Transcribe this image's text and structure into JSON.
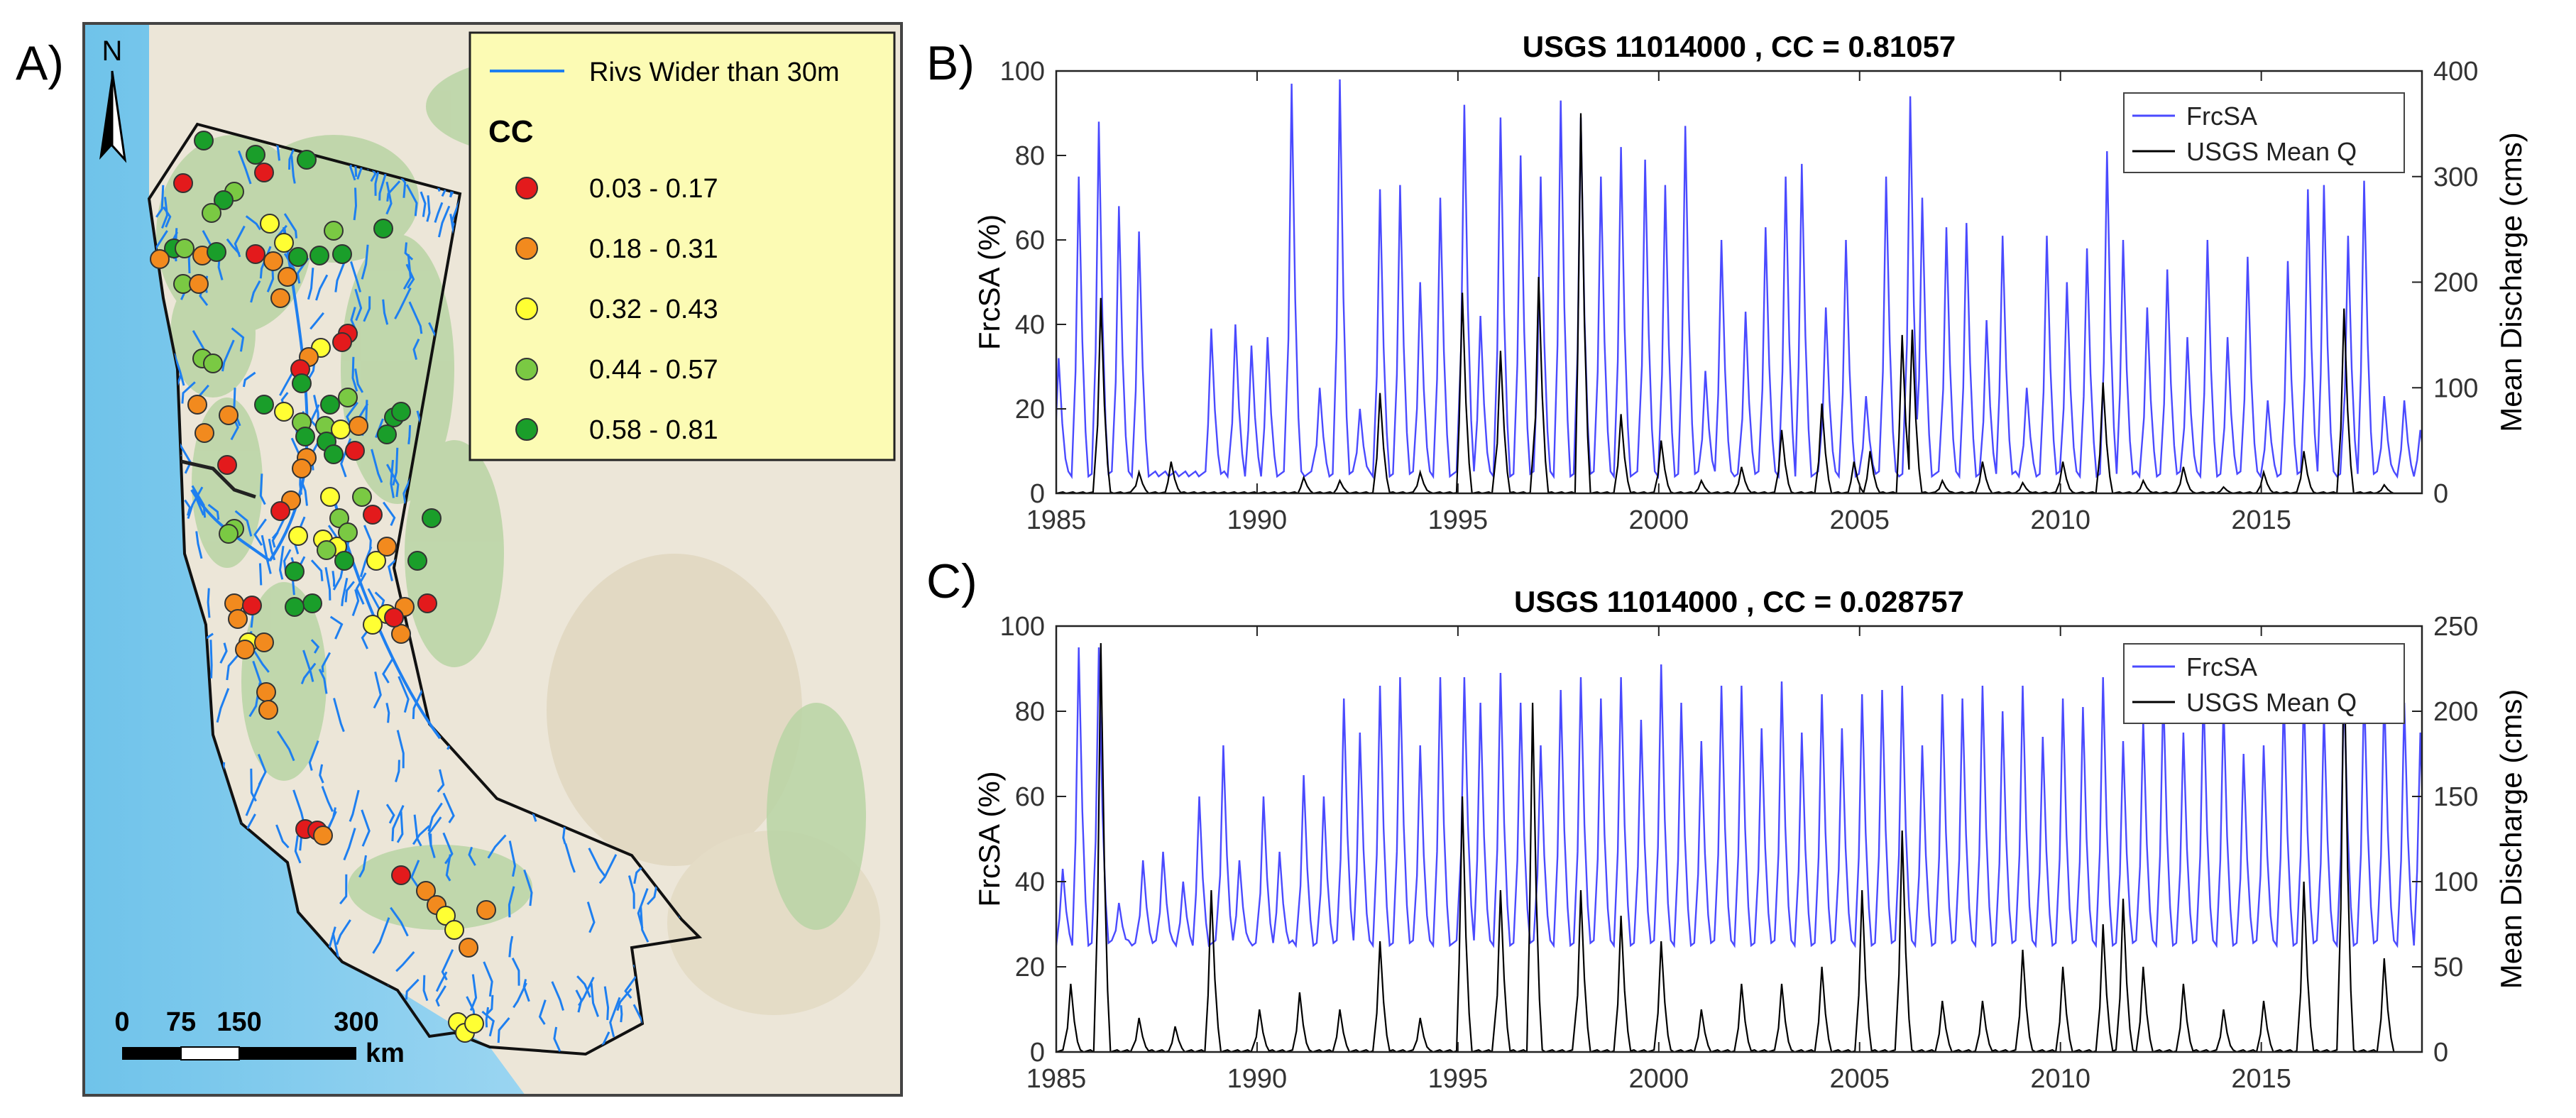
{
  "map_panel": {
    "label": "A)",
    "north_label": "N",
    "legend": {
      "river_label": "Rivs Wider than 30m",
      "title": "CC",
      "classes": [
        {
          "range": "0.03 - 0.17",
          "color": "#e31a1c"
        },
        {
          "range": "0.18 - 0.31",
          "color": "#f28a1e"
        },
        {
          "range": "0.32 - 0.43",
          "color": "#ffff33"
        },
        {
          "range": "0.44 - 0.57",
          "color": "#7ac943"
        },
        {
          "range": "0.58 - 0.81",
          "color": "#1a9e2a"
        }
      ]
    },
    "scale_bar": {
      "ticks": [
        "0",
        "75",
        "150",
        "300"
      ],
      "unit": "km"
    }
  },
  "chart_data": [
    {
      "panel_label": "B)",
      "type": "line",
      "title": "USGS 11014000 , CC = 0.81057",
      "ylabel": "FrcSA (%)",
      "ylabel_right": "Mean Discharge (cms)",
      "xlim": [
        1985,
        2019
      ],
      "ylim": [
        0,
        100
      ],
      "ylim_right": [
        0,
        400
      ],
      "xticks": [
        "1985",
        "1990",
        "1995",
        "2000",
        "2005",
        "2010",
        "2015"
      ],
      "yticks": [
        "0",
        "20",
        "40",
        "60",
        "80",
        "100"
      ],
      "yticks_right": [
        "0",
        "100",
        "200",
        "300",
        "400"
      ],
      "legend": [
        "FrcSA",
        "USGS Mean Q"
      ],
      "series": [
        {
          "name": "FrcSA",
          "axis": "left",
          "color": "#4a4aff",
          "base": 4,
          "peaks": [
            [
              1985.1,
              32
            ],
            [
              1985.6,
              75
            ],
            [
              1986.1,
              88
            ],
            [
              1986.6,
              68
            ],
            [
              1987.1,
              62
            ],
            [
              1988.9,
              39
            ],
            [
              1989.5,
              40
            ],
            [
              1989.9,
              35
            ],
            [
              1990.3,
              37
            ],
            [
              1990.9,
              97
            ],
            [
              1991.6,
              25
            ],
            [
              1992.1,
              98
            ],
            [
              1992.6,
              20
            ],
            [
              1993.1,
              72
            ],
            [
              1993.6,
              73
            ],
            [
              1994.1,
              50
            ],
            [
              1994.6,
              70
            ],
            [
              1995.2,
              92
            ],
            [
              1995.6,
              42
            ],
            [
              1996.1,
              89
            ],
            [
              1996.6,
              80
            ],
            [
              1997.1,
              75
            ],
            [
              1997.6,
              93
            ],
            [
              1998.1,
              89
            ],
            [
              1998.6,
              75
            ],
            [
              1999.1,
              82
            ],
            [
              1999.7,
              79
            ],
            [
              2000.2,
              73
            ],
            [
              2000.7,
              87
            ],
            [
              2001.2,
              29
            ],
            [
              2001.6,
              60
            ],
            [
              2002.2,
              43
            ],
            [
              2002.7,
              63
            ],
            [
              2003.2,
              75
            ],
            [
              2003.6,
              78
            ],
            [
              2004.2,
              44
            ],
            [
              2004.7,
              60
            ],
            [
              2005.2,
              23
            ],
            [
              2005.7,
              75
            ],
            [
              2006.3,
              94
            ],
            [
              2006.6,
              70
            ],
            [
              2007.2,
              63
            ],
            [
              2007.7,
              64
            ],
            [
              2008.2,
              41
            ],
            [
              2008.6,
              61
            ],
            [
              2009.2,
              25
            ],
            [
              2009.7,
              61
            ],
            [
              2010.2,
              50
            ],
            [
              2010.7,
              58
            ],
            [
              2011.2,
              81
            ],
            [
              2011.6,
              60
            ],
            [
              2012.2,
              44
            ],
            [
              2012.7,
              53
            ],
            [
              2013.2,
              37
            ],
            [
              2013.7,
              60
            ],
            [
              2014.2,
              37
            ],
            [
              2014.7,
              56
            ],
            [
              2015.2,
              22
            ],
            [
              2015.7,
              55
            ],
            [
              2016.2,
              72
            ],
            [
              2016.6,
              73
            ],
            [
              2017.2,
              61
            ],
            [
              2017.6,
              74
            ],
            [
              2018.1,
              23
            ],
            [
              2018.6,
              22
            ],
            [
              2019.0,
              15
            ]
          ]
        },
        {
          "name": "USGS Mean Q",
          "axis": "right",
          "color": "#000000",
          "base": 0,
          "peaks": [
            [
              1986.15,
              185
            ],
            [
              1987.1,
              20
            ],
            [
              1987.9,
              30
            ],
            [
              1991.2,
              15
            ],
            [
              1992.1,
              12
            ],
            [
              1993.1,
              95
            ],
            [
              1994.1,
              20
            ],
            [
              1995.15,
              190
            ],
            [
              1996.1,
              135
            ],
            [
              1997.05,
              205
            ],
            [
              1998.1,
              360
            ],
            [
              1999.1,
              75
            ],
            [
              2000.1,
              50
            ],
            [
              2001.1,
              12
            ],
            [
              2002.1,
              25
            ],
            [
              2003.1,
              60
            ],
            [
              2004.1,
              85
            ],
            [
              2004.9,
              30
            ],
            [
              2005.3,
              40
            ],
            [
              2006.1,
              150
            ],
            [
              2006.35,
              155
            ],
            [
              2007.1,
              12
            ],
            [
              2008.1,
              30
            ],
            [
              2009.1,
              10
            ],
            [
              2010.1,
              30
            ],
            [
              2011.1,
              105
            ],
            [
              2012.1,
              12
            ],
            [
              2013.1,
              25
            ],
            [
              2014.1,
              6
            ],
            [
              2015.1,
              20
            ],
            [
              2016.1,
              40
            ],
            [
              2017.1,
              175
            ],
            [
              2018.1,
              8
            ]
          ]
        }
      ]
    },
    {
      "panel_label": "C)",
      "type": "line",
      "title": "USGS 11014000 , CC = 0.028757",
      "ylabel": "FrcSA (%)",
      "ylabel_right": "Mean Discharge (cms)",
      "xlim": [
        1985,
        2019
      ],
      "ylim": [
        0,
        100
      ],
      "ylim_right": [
        0,
        250
      ],
      "xticks": [
        "1985",
        "1990",
        "1995",
        "2000",
        "2005",
        "2010",
        "2015"
      ],
      "yticks": [
        "0",
        "20",
        "40",
        "60",
        "80",
        "100"
      ],
      "yticks_right": [
        "0",
        "50",
        "100",
        "150",
        "200",
        "250"
      ],
      "legend": [
        "FrcSA",
        "USGS Mean Q"
      ],
      "series": [
        {
          "name": "FrcSA",
          "axis": "left",
          "color": "#4a4aff",
          "base": 25,
          "peaks": [
            [
              1985.2,
              43
            ],
            [
              1985.6,
              95
            ],
            [
              1986.1,
              95
            ],
            [
              1986.6,
              35
            ],
            [
              1987.2,
              45
            ],
            [
              1987.7,
              47
            ],
            [
              1988.2,
              40
            ],
            [
              1988.6,
              60
            ],
            [
              1989.2,
              72
            ],
            [
              1989.6,
              45
            ],
            [
              1990.2,
              60
            ],
            [
              1990.6,
              47
            ],
            [
              1991.2,
              65
            ],
            [
              1991.7,
              60
            ],
            [
              1992.2,
              83
            ],
            [
              1992.6,
              75
            ],
            [
              1993.1,
              86
            ],
            [
              1993.6,
              88
            ],
            [
              1994.1,
              72
            ],
            [
              1994.6,
              88
            ],
            [
              1995.2,
              88
            ],
            [
              1995.6,
              82
            ],
            [
              1996.1,
              89
            ],
            [
              1996.6,
              82
            ],
            [
              1997.1,
              72
            ],
            [
              1997.6,
              85
            ],
            [
              1998.1,
              88
            ],
            [
              1998.6,
              83
            ],
            [
              1999.1,
              88
            ],
            [
              1999.6,
              78
            ],
            [
              2000.1,
              91
            ],
            [
              2000.6,
              82
            ],
            [
              2001.1,
              73
            ],
            [
              2001.6,
              86
            ],
            [
              2002.1,
              86
            ],
            [
              2002.6,
              76
            ],
            [
              2003.1,
              87
            ],
            [
              2003.6,
              75
            ],
            [
              2004.1,
              84
            ],
            [
              2004.6,
              76
            ],
            [
              2005.1,
              84
            ],
            [
              2005.6,
              85
            ],
            [
              2006.1,
              86
            ],
            [
              2006.6,
              72
            ],
            [
              2007.1,
              84
            ],
            [
              2007.6,
              83
            ],
            [
              2008.1,
              86
            ],
            [
              2008.6,
              80
            ],
            [
              2009.1,
              86
            ],
            [
              2009.6,
              74
            ],
            [
              2010.1,
              83
            ],
            [
              2010.6,
              81
            ],
            [
              2011.1,
              88
            ],
            [
              2011.6,
              73
            ],
            [
              2012.1,
              78
            ],
            [
              2012.6,
              85
            ],
            [
              2013.1,
              75
            ],
            [
              2013.6,
              85
            ],
            [
              2014.1,
              82
            ],
            [
              2014.6,
              70
            ],
            [
              2015.1,
              72
            ],
            [
              2015.6,
              84
            ],
            [
              2016.1,
              85
            ],
            [
              2016.6,
              80
            ],
            [
              2017.1,
              86
            ],
            [
              2017.6,
              86
            ],
            [
              2018.1,
              85
            ],
            [
              2018.6,
              82
            ],
            [
              2019.0,
              75
            ]
          ]
        },
        {
          "name": "USGS Mean Q",
          "axis": "right",
          "color": "#000000",
          "base": 0,
          "peaks": [
            [
              1985.4,
              40
            ],
            [
              1986.15,
              240
            ],
            [
              1987.1,
              20
            ],
            [
              1988.0,
              15
            ],
            [
              1988.9,
              95
            ],
            [
              1990.1,
              25
            ],
            [
              1991.1,
              35
            ],
            [
              1992.1,
              25
            ],
            [
              1993.1,
              65
            ],
            [
              1994.1,
              20
            ],
            [
              1995.15,
              150
            ],
            [
              1996.1,
              95
            ],
            [
              1996.9,
              205
            ],
            [
              1998.1,
              95
            ],
            [
              1999.1,
              80
            ],
            [
              2000.1,
              65
            ],
            [
              2001.1,
              25
            ],
            [
              2002.1,
              40
            ],
            [
              2003.1,
              40
            ],
            [
              2004.1,
              50
            ],
            [
              2005.1,
              95
            ],
            [
              2006.1,
              130
            ],
            [
              2007.1,
              30
            ],
            [
              2008.1,
              30
            ],
            [
              2009.1,
              60
            ],
            [
              2010.1,
              50
            ],
            [
              2011.1,
              75
            ],
            [
              2011.6,
              90
            ],
            [
              2012.1,
              50
            ],
            [
              2013.1,
              40
            ],
            [
              2014.1,
              25
            ],
            [
              2015.1,
              30
            ],
            [
              2016.1,
              100
            ],
            [
              2017.1,
              240
            ],
            [
              2018.1,
              55
            ]
          ]
        }
      ]
    }
  ]
}
